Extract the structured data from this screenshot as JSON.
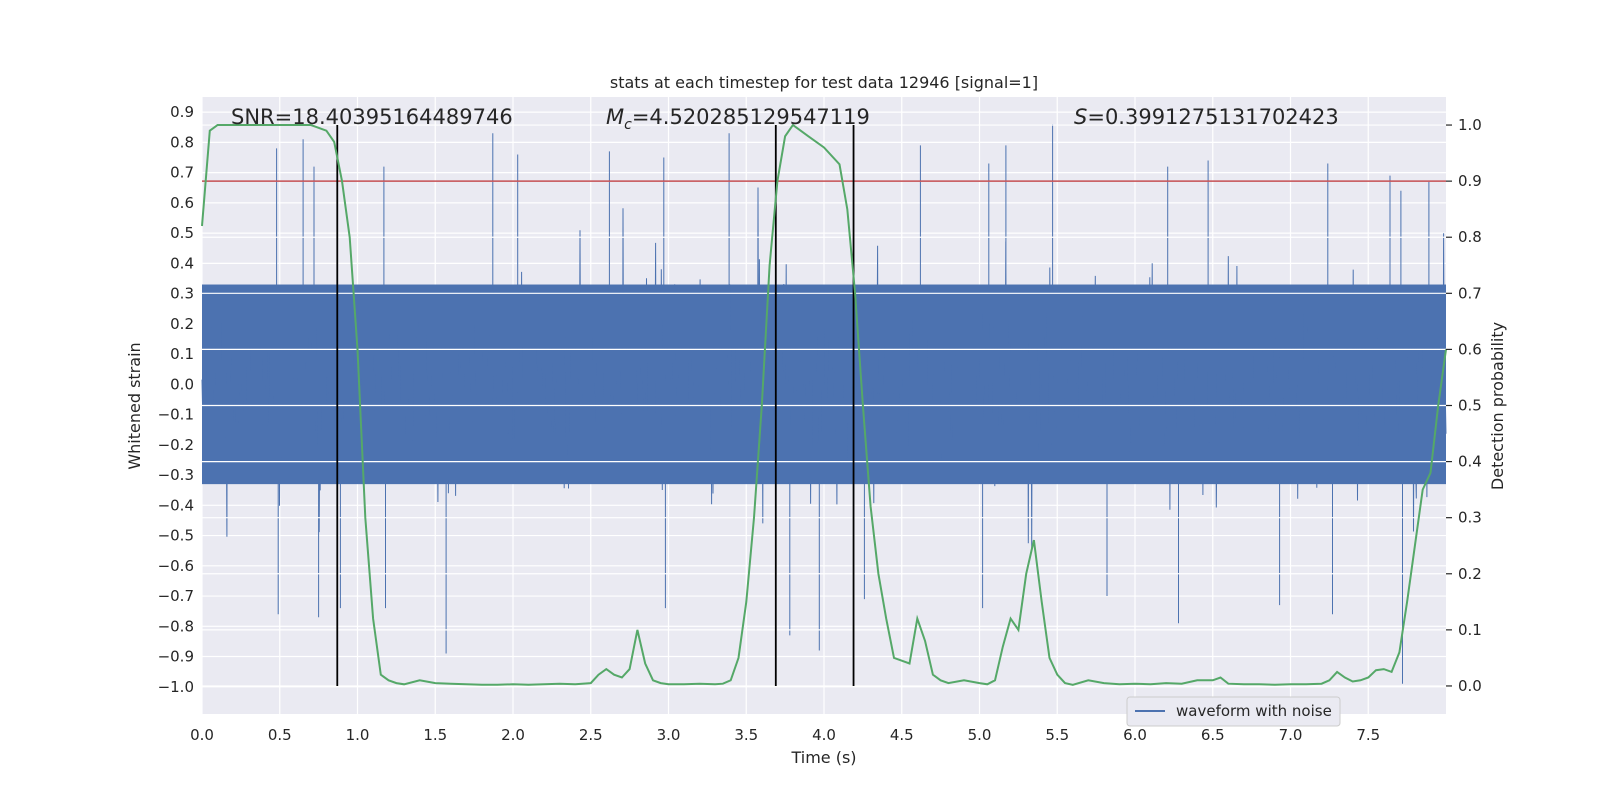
{
  "chart_data": {
    "type": "line",
    "title": "stats at each timestep for test data 12946 [signal=1]",
    "xlabel": "Time (s)",
    "ylabel": "Whitened strain",
    "y2label": "Detection probability",
    "xlim": [
      0,
      8
    ],
    "ylim": [
      -1.09,
      0.95
    ],
    "y2lim": [
      -0.05,
      1.05
    ],
    "x_ticks": [
      0.0,
      0.5,
      1.0,
      1.5,
      2.0,
      2.5,
      3.0,
      3.5,
      4.0,
      4.5,
      5.0,
      5.5,
      6.0,
      6.5,
      7.0,
      7.5
    ],
    "x_tick_labels": [
      "0.0",
      "0.5",
      "1.0",
      "1.5",
      "2.0",
      "2.5",
      "3.0",
      "3.5",
      "4.0",
      "4.5",
      "5.0",
      "5.5",
      "6.0",
      "6.5",
      "7.0",
      "7.5"
    ],
    "y_ticks": [
      0.9,
      0.8,
      0.7,
      0.6,
      0.5,
      0.4,
      0.3,
      0.2,
      0.1,
      0.0,
      -0.1,
      -0.2,
      -0.3,
      -0.4,
      -0.5,
      -0.6,
      -0.7,
      -0.8,
      -0.9,
      -1.0
    ],
    "y_tick_labels": [
      "0.9",
      "0.8",
      "0.7",
      "0.6",
      "0.5",
      "0.4",
      "0.3",
      "0.2",
      "0.1",
      "0.0",
      "−0.1",
      "−0.2",
      "−0.3",
      "−0.4",
      "−0.5",
      "−0.6",
      "−0.7",
      "−0.8",
      "−0.9",
      "−1.0"
    ],
    "y2_ticks": [
      1.0,
      0.9,
      0.8,
      0.7,
      0.6,
      0.5,
      0.4,
      0.3,
      0.2,
      0.1,
      0.0
    ],
    "y2_tick_labels": [
      "1.0",
      "0.9",
      "0.8",
      "0.7",
      "0.6",
      "0.5",
      "0.4",
      "0.3",
      "0.2",
      "0.1",
      "0.0"
    ],
    "annotations": {
      "snr": "SNR=18.40395164489746",
      "mc_symbol": "M",
      "mc_sub": "c",
      "mc_value": "=4.520285129547119",
      "s_symbol": "S",
      "s_value": "=0.3991275131702423"
    },
    "legend": {
      "label": "waveform with noise",
      "position": "lower-right"
    },
    "threshold": {
      "value": 0.9,
      "axis": "y2",
      "color": "#c44e52"
    },
    "vertical_lines": [
      0.87,
      3.69,
      4.19
    ],
    "waveform": {
      "name": "waveform with noise",
      "color": "#4c72b0",
      "x_range": [
        0,
        8
      ],
      "core_amplitude": 0.33,
      "notable_peaks": [
        {
          "x": 0.48,
          "y": 0.78
        },
        {
          "x": 0.72,
          "y": 0.72
        },
        {
          "x": 1.17,
          "y": 0.72
        },
        {
          "x": 1.87,
          "y": 0.83
        },
        {
          "x": 2.03,
          "y": 0.76
        },
        {
          "x": 2.62,
          "y": 0.77
        },
        {
          "x": 2.97,
          "y": 0.75
        },
        {
          "x": 3.39,
          "y": 0.83
        },
        {
          "x": 4.62,
          "y": 0.79
        },
        {
          "x": 5.06,
          "y": 0.73
        },
        {
          "x": 5.17,
          "y": 0.79
        },
        {
          "x": 5.47,
          "y": 0.86
        },
        {
          "x": 6.21,
          "y": 0.72
        },
        {
          "x": 6.47,
          "y": 0.74
        },
        {
          "x": 7.24,
          "y": 0.73
        },
        {
          "x": 7.64,
          "y": 0.69
        },
        {
          "x": 7.71,
          "y": 0.64
        },
        {
          "x": 7.89,
          "y": 0.67
        },
        {
          "x": 0.65,
          "y": 0.81
        }
      ],
      "notable_troughs": [
        {
          "x": 0.49,
          "y": -0.76
        },
        {
          "x": 0.75,
          "y": -0.77
        },
        {
          "x": 0.89,
          "y": -0.74
        },
        {
          "x": 1.18,
          "y": -0.74
        },
        {
          "x": 1.57,
          "y": -0.89
        },
        {
          "x": 2.98,
          "y": -0.74
        },
        {
          "x": 3.97,
          "y": -0.88
        },
        {
          "x": 3.78,
          "y": -0.83
        },
        {
          "x": 4.26,
          "y": -0.71
        },
        {
          "x": 5.02,
          "y": -0.74
        },
        {
          "x": 6.28,
          "y": -0.79
        },
        {
          "x": 6.93,
          "y": -0.73
        },
        {
          "x": 7.27,
          "y": -0.76
        },
        {
          "x": 7.72,
          "y": -0.99
        },
        {
          "x": 5.82,
          "y": -0.7
        }
      ]
    },
    "probability": {
      "name": "detection probability",
      "color": "#55a868",
      "axis": "y2",
      "x": [
        0.0,
        0.05,
        0.1,
        0.2,
        0.3,
        0.4,
        0.5,
        0.6,
        0.7,
        0.8,
        0.85,
        0.9,
        0.95,
        1.0,
        1.05,
        1.1,
        1.15,
        1.2,
        1.25,
        1.3,
        1.4,
        1.5,
        1.6,
        1.7,
        1.8,
        1.9,
        2.0,
        2.1,
        2.2,
        2.3,
        2.4,
        2.5,
        2.55,
        2.6,
        2.65,
        2.7,
        2.75,
        2.8,
        2.85,
        2.9,
        2.95,
        3.0,
        3.1,
        3.2,
        3.3,
        3.35,
        3.4,
        3.45,
        3.5,
        3.55,
        3.6,
        3.65,
        3.7,
        3.75,
        3.8,
        3.85,
        3.9,
        4.0,
        4.1,
        4.15,
        4.2,
        4.25,
        4.3,
        4.35,
        4.4,
        4.45,
        4.5,
        4.55,
        4.6,
        4.65,
        4.7,
        4.75,
        4.8,
        4.9,
        5.0,
        5.05,
        5.1,
        5.15,
        5.2,
        5.25,
        5.3,
        5.35,
        5.4,
        5.45,
        5.5,
        5.55,
        5.6,
        5.7,
        5.8,
        5.9,
        6.0,
        6.1,
        6.2,
        6.3,
        6.4,
        6.5,
        6.55,
        6.6,
        6.7,
        6.8,
        6.9,
        7.0,
        7.1,
        7.2,
        7.25,
        7.3,
        7.35,
        7.4,
        7.45,
        7.5,
        7.55,
        7.6,
        7.65,
        7.7,
        7.75,
        7.8,
        7.85,
        7.9,
        7.95,
        8.0
      ],
      "y": [
        0.82,
        0.99,
        1.0,
        1.0,
        1.0,
        1.0,
        1.0,
        1.0,
        1.0,
        0.99,
        0.97,
        0.9,
        0.8,
        0.6,
        0.3,
        0.12,
        0.02,
        0.01,
        0.005,
        0.003,
        0.01,
        0.005,
        0.004,
        0.003,
        0.002,
        0.002,
        0.003,
        0.002,
        0.003,
        0.004,
        0.003,
        0.005,
        0.02,
        0.03,
        0.02,
        0.015,
        0.03,
        0.1,
        0.04,
        0.01,
        0.005,
        0.003,
        0.003,
        0.004,
        0.003,
        0.004,
        0.01,
        0.05,
        0.15,
        0.3,
        0.5,
        0.75,
        0.9,
        0.98,
        1.0,
        0.99,
        0.98,
        0.96,
        0.93,
        0.85,
        0.7,
        0.5,
        0.32,
        0.2,
        0.12,
        0.05,
        0.045,
        0.04,
        0.12,
        0.08,
        0.02,
        0.01,
        0.005,
        0.01,
        0.005,
        0.003,
        0.01,
        0.07,
        0.12,
        0.1,
        0.2,
        0.26,
        0.15,
        0.05,
        0.02,
        0.005,
        0.002,
        0.01,
        0.005,
        0.003,
        0.004,
        0.003,
        0.005,
        0.004,
        0.01,
        0.01,
        0.015,
        0.004,
        0.003,
        0.003,
        0.002,
        0.003,
        0.003,
        0.004,
        0.01,
        0.025,
        0.015,
        0.008,
        0.01,
        0.015,
        0.028,
        0.03,
        0.025,
        0.06,
        0.15,
        0.25,
        0.35,
        0.38,
        0.5,
        0.6
      ]
    }
  }
}
